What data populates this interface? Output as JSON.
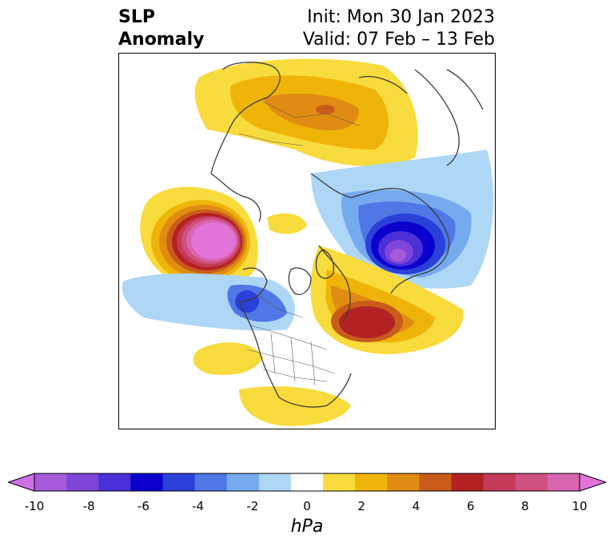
{
  "header": {
    "title_line1": "SLP",
    "title_line2": "Anomaly",
    "init": "Init: Mon 30 Jan 2023",
    "valid": "Valid: 07 Feb – 13 Feb"
  },
  "colorbar": {
    "unit": "hPa",
    "ticks": [
      "-10",
      "-8",
      "-6",
      "-4",
      "-2",
      "0",
      "2",
      "4",
      "6",
      "8",
      "10"
    ],
    "min": -10,
    "max": 10,
    "extend": "both",
    "colors": [
      "#cf6fe6",
      "#a45ad9",
      "#7f45d8",
      "#4b2fd9",
      "#0a00cc",
      "#2b3fd9",
      "#4f77e5",
      "#76aaef",
      "#aed6f5",
      "#ffffff",
      "#f8db3c",
      "#efb40a",
      "#e08c12",
      "#c95c1b",
      "#b22222",
      "#c53a58",
      "#cf5181",
      "#d865ae",
      "#e274d8"
    ]
  },
  "map": {
    "projection": "north-polar-stereographic",
    "field": "sea-level pressure anomaly",
    "features": {
      "high_eurasia": "anomaly max over Russia",
      "high_north_pacific": "strong positive anomaly over the Aleutians",
      "high_north_atlantic": "positive anomaly south of Greenland",
      "low_siberia": "strong negative anomaly over eastern Siberia",
      "low_northwest_america": "negative anomaly off Alaska/British Columbia"
    }
  }
}
